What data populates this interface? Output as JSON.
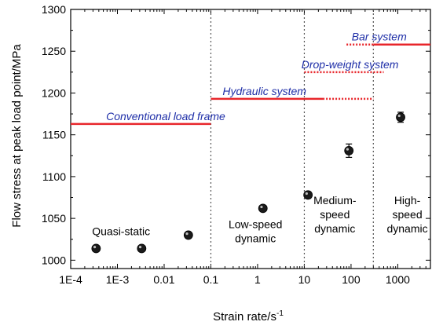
{
  "chart_data": {
    "type": "scatter",
    "xlabel": "Strain rate/s",
    "xlabel_sup": "-1",
    "ylabel": "Flow stress at peak load point/MPa",
    "x_scale": "log",
    "xlim": [
      0.0001,
      5000
    ],
    "ylim": [
      990,
      1300
    ],
    "x_ticks": [
      {
        "value": 0.0001,
        "label": "1E-4"
      },
      {
        "value": 0.001,
        "label": "1E-3"
      },
      {
        "value": 0.01,
        "label": "0.01"
      },
      {
        "value": 0.1,
        "label": "0.1"
      },
      {
        "value": 1,
        "label": "1"
      },
      {
        "value": 10,
        "label": "10"
      },
      {
        "value": 100,
        "label": "100"
      },
      {
        "value": 1000,
        "label": "1000"
      }
    ],
    "y_ticks": [
      1000,
      1050,
      1100,
      1150,
      1200,
      1250,
      1300
    ],
    "grid": false,
    "points": [
      {
        "x": 0.00035,
        "y": 1014,
        "err": 0
      },
      {
        "x": 0.0033,
        "y": 1014,
        "err": 0
      },
      {
        "x": 0.033,
        "y": 1030,
        "err": 0
      },
      {
        "x": 1.3,
        "y": 1062,
        "err": 0
      },
      {
        "x": 12,
        "y": 1078,
        "err": 4
      },
      {
        "x": 90,
        "y": 1131,
        "err": 8
      },
      {
        "x": 1150,
        "y": 1171,
        "err": 6
      }
    ],
    "region_dividers": [
      0.1,
      10,
      300
    ],
    "regions": [
      {
        "lines": [
          "Quasi-static"
        ],
        "x": 0.0012,
        "y": 1030
      },
      {
        "lines": [
          "Low-speed",
          "dynamic"
        ],
        "x": 0.9,
        "y": 1030
      },
      {
        "lines": [
          "Medium-",
          "speed",
          "dynamic"
        ],
        "x": 45,
        "y": 1050
      },
      {
        "lines": [
          "High-",
          "speed",
          "dynamic"
        ],
        "x": 1600,
        "y": 1050
      }
    ],
    "systems": [
      {
        "label": "Conventional load frame",
        "y": 1163,
        "solid": [
          0.0001,
          0.1
        ],
        "dotted": null,
        "label_x": 0.0108
      },
      {
        "label": "Hydraulic system",
        "y": 1193,
        "solid": [
          0.1,
          25
        ],
        "dotted": [
          25,
          300
        ],
        "label_x": 1.4
      },
      {
        "label": "Drop-weight system",
        "y": 1225,
        "solid": null,
        "dotted": [
          10,
          500
        ],
        "label_x": 95
      },
      {
        "label": "Bar system",
        "y": 1258,
        "solid": [
          300,
          5000
        ],
        "dotted": [
          80,
          300
        ],
        "label_x": 400
      }
    ],
    "colors": {
      "system_line": "#e8262b",
      "system_text": "#1f2fa8",
      "divider": "#555555",
      "marker": "#1a1a1a"
    }
  }
}
